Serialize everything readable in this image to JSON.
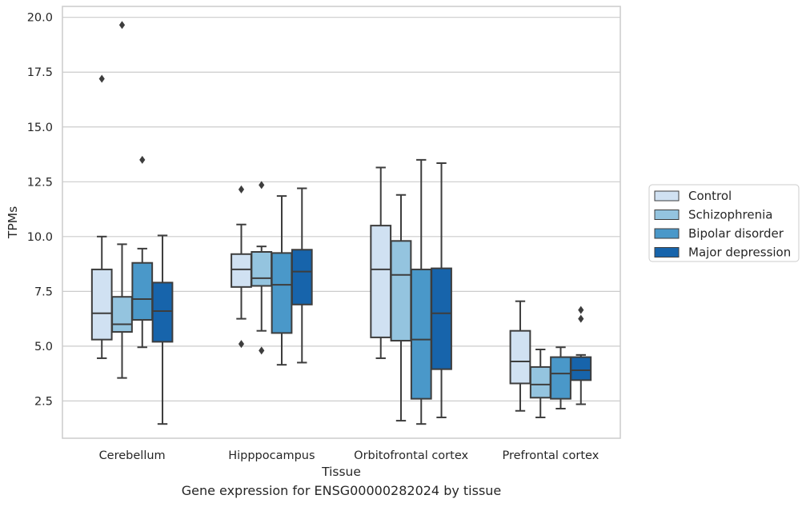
{
  "caption": "Gene expression for ENSG00000282024 by tissue",
  "chart_data": {
    "type": "box",
    "xlabel": "Tissue",
    "ylabel": "TPMs",
    "ylim": [
      0.8,
      20.5
    ],
    "yticks": [
      "2.5",
      "5.0",
      "7.5",
      "10.0",
      "12.5",
      "15.0",
      "17.5",
      "20.0"
    ],
    "grid": "horizontal",
    "legend_position": "right",
    "categories": [
      "Cerebellum",
      "Hipppocampus",
      "Orbitofrontal cortex",
      "Prefrontal cortex"
    ],
    "series": [
      {
        "name": "Control",
        "color": "#d0e1f2",
        "boxes": [
          {
            "whisker_low": 4.45,
            "q1": 5.3,
            "median": 6.5,
            "q3": 8.5,
            "whisker_high": 10.0,
            "outliers": [
              17.2
            ]
          },
          {
            "whisker_low": 6.25,
            "q1": 7.7,
            "median": 8.5,
            "q3": 9.2,
            "whisker_high": 10.55,
            "outliers": [
              12.15,
              5.1
            ]
          },
          {
            "whisker_low": 4.45,
            "q1": 5.4,
            "median": 8.5,
            "q3": 10.5,
            "whisker_high": 13.15,
            "outliers": []
          },
          {
            "whisker_low": 2.05,
            "q1": 3.3,
            "median": 4.3,
            "q3": 5.7,
            "whisker_high": 7.05,
            "outliers": []
          }
        ]
      },
      {
        "name": "Schizophrenia",
        "color": "#94c4df",
        "boxes": [
          {
            "whisker_low": 3.55,
            "q1": 5.65,
            "median": 6.0,
            "q3": 7.25,
            "whisker_high": 9.65,
            "outliers": [
              19.65
            ]
          },
          {
            "whisker_low": 5.7,
            "q1": 7.75,
            "median": 8.1,
            "q3": 9.3,
            "whisker_high": 9.55,
            "outliers": [
              12.35,
              4.8
            ]
          },
          {
            "whisker_low": 1.6,
            "q1": 5.25,
            "median": 8.25,
            "q3": 9.8,
            "whisker_high": 11.9,
            "outliers": []
          },
          {
            "whisker_low": 1.75,
            "q1": 2.65,
            "median": 3.25,
            "q3": 4.05,
            "whisker_high": 4.85,
            "outliers": []
          }
        ]
      },
      {
        "name": "Bipolar disorder",
        "color": "#4a98c9",
        "boxes": [
          {
            "whisker_low": 4.95,
            "q1": 6.2,
            "median": 7.15,
            "q3": 8.8,
            "whisker_high": 9.45,
            "outliers": [
              13.5
            ]
          },
          {
            "whisker_low": 4.15,
            "q1": 5.6,
            "median": 7.8,
            "q3": 9.25,
            "whisker_high": 11.85,
            "outliers": []
          },
          {
            "whisker_low": 1.45,
            "q1": 2.6,
            "median": 5.3,
            "q3": 8.5,
            "whisker_high": 13.5,
            "outliers": []
          },
          {
            "whisker_low": 2.15,
            "q1": 2.6,
            "median": 3.75,
            "q3": 4.5,
            "whisker_high": 4.95,
            "outliers": []
          }
        ]
      },
      {
        "name": "Major depression",
        "color": "#1764ab",
        "boxes": [
          {
            "whisker_low": 1.45,
            "q1": 5.2,
            "median": 6.6,
            "q3": 7.9,
            "whisker_high": 10.05,
            "outliers": []
          },
          {
            "whisker_low": 4.25,
            "q1": 6.9,
            "median": 8.4,
            "q3": 9.4,
            "whisker_high": 12.2,
            "outliers": []
          },
          {
            "whisker_low": 1.75,
            "q1": 3.95,
            "median": 6.5,
            "q3": 8.55,
            "whisker_high": 13.35,
            "outliers": []
          },
          {
            "whisker_low": 2.35,
            "q1": 3.45,
            "median": 3.9,
            "q3": 4.5,
            "whisker_high": 4.6,
            "outliers": [
              6.65,
              6.25
            ]
          }
        ]
      }
    ]
  }
}
